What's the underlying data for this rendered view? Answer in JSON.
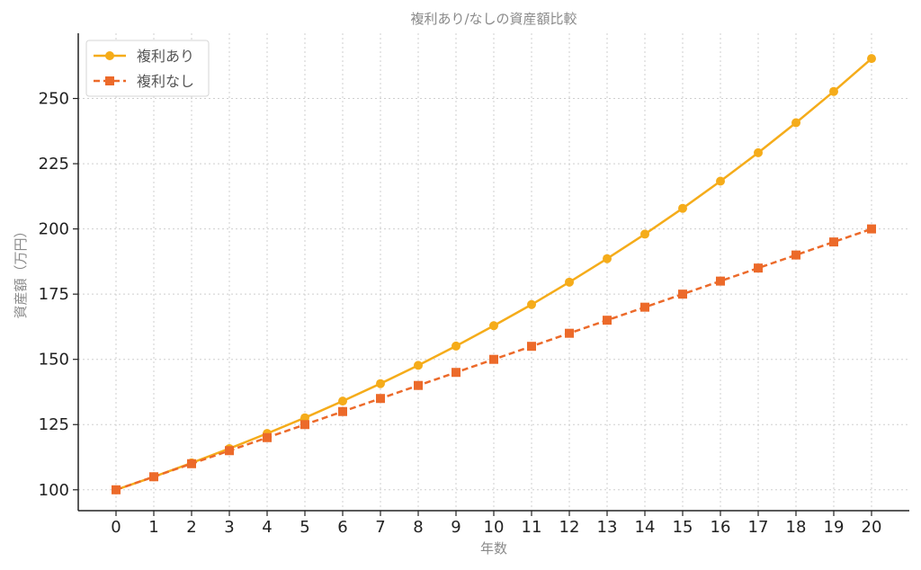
{
  "chart_data": {
    "type": "line",
    "title": "複利あり/なしの資産額比較",
    "xlabel": "年数",
    "ylabel": "資産額（万円）",
    "x": [
      0,
      1,
      2,
      3,
      4,
      5,
      6,
      7,
      8,
      9,
      10,
      11,
      12,
      13,
      14,
      15,
      16,
      17,
      18,
      19,
      20
    ],
    "xlim": [
      -1,
      21
    ],
    "ylim": [
      92,
      275
    ],
    "yticks": [
      100,
      125,
      150,
      175,
      200,
      225,
      250
    ],
    "grid": true,
    "legend_position": "top-left",
    "series": [
      {
        "name": "複利あり",
        "color": "#f5ac1a",
        "marker": "circle",
        "linestyle": "solid",
        "values": [
          100,
          105,
          110.3,
          115.8,
          121.6,
          127.6,
          134.0,
          140.7,
          147.7,
          155.1,
          162.9,
          171.0,
          179.6,
          188.6,
          198.0,
          207.9,
          218.3,
          229.2,
          240.7,
          252.7,
          265.3
        ]
      },
      {
        "name": "複利なし",
        "color": "#ec6a2a",
        "marker": "square",
        "linestyle": "dashed",
        "values": [
          100,
          105,
          110,
          115,
          120,
          125,
          130,
          135,
          140,
          145,
          150,
          155,
          160,
          165,
          170,
          175,
          180,
          185,
          190,
          195,
          200
        ]
      }
    ]
  }
}
